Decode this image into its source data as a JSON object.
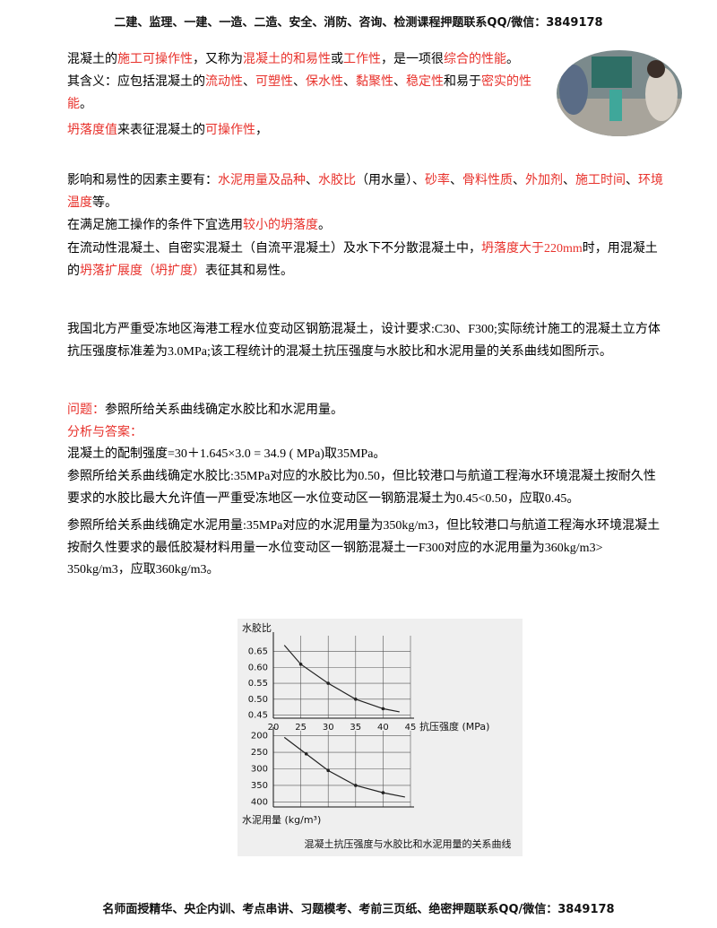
{
  "header": {
    "text": "二建、监理、一建、一造、二造、安全、消防、咨询、检测课程押题联系QQ/微信：3849178"
  },
  "paragraphs": [
    {
      "segments": [
        {
          "text": "混凝土的",
          "color": "#000000"
        },
        {
          "text": "施工可操作性",
          "color": "#e8322c"
        },
        {
          "text": "，又称为",
          "color": "#000000"
        },
        {
          "text": "混凝土的和易性",
          "color": "#e8322c"
        },
        {
          "text": "或",
          "color": "#000000"
        },
        {
          "text": "工作性",
          "color": "#e8322c"
        },
        {
          "text": "，是一项很",
          "color": "#000000"
        },
        {
          "text": "综合的性能",
          "color": "#e8322c"
        },
        {
          "text": "。",
          "color": "#000000"
        }
      ]
    },
    {
      "segments": [
        {
          "text": "其含义：应包括混凝土的",
          "color": "#000000"
        },
        {
          "text": "流动性",
          "color": "#e8322c"
        },
        {
          "text": "、",
          "color": "#000000"
        },
        {
          "text": "可塑性",
          "color": "#e8322c"
        },
        {
          "text": "、",
          "color": "#000000"
        },
        {
          "text": "保水性",
          "color": "#e8322c"
        },
        {
          "text": "、",
          "color": "#000000"
        },
        {
          "text": "黏聚性",
          "color": "#e8322c"
        },
        {
          "text": "、",
          "color": "#000000"
        },
        {
          "text": "稳定性",
          "color": "#e8322c"
        },
        {
          "text": "和易于",
          "color": "#000000"
        },
        {
          "text": "密实的性能",
          "color": "#e8322c"
        },
        {
          "text": "。",
          "color": "#000000"
        }
      ]
    },
    {
      "segments": [
        {
          "text": "坍落度值",
          "color": "#e8322c"
        },
        {
          "text": "来表征混凝土的",
          "color": "#000000"
        },
        {
          "text": "可操作性",
          "color": "#e8322c"
        },
        {
          "text": "，",
          "color": "#000000"
        }
      ]
    },
    {
      "segments": [
        {
          "text": "影响和易性的因素主要有：",
          "color": "#000000"
        },
        {
          "text": "水泥用量及品种",
          "color": "#e8322c"
        },
        {
          "text": "、",
          "color": "#000000"
        },
        {
          "text": "水胶比",
          "color": "#e8322c"
        },
        {
          "text": "（用水量）、",
          "color": "#000000"
        },
        {
          "text": "砂率",
          "color": "#e8322c"
        },
        {
          "text": "、",
          "color": "#000000"
        },
        {
          "text": "骨料性质",
          "color": "#e8322c"
        },
        {
          "text": "、",
          "color": "#000000"
        },
        {
          "text": "外加剂",
          "color": "#e8322c"
        },
        {
          "text": "、",
          "color": "#000000"
        },
        {
          "text": "施工时间",
          "color": "#e8322c"
        },
        {
          "text": "、",
          "color": "#000000"
        },
        {
          "text": "环境温度",
          "color": "#e8322c"
        },
        {
          "text": "等。",
          "color": "#000000"
        }
      ]
    },
    {
      "segments": [
        {
          "text": "在满足施工操作的条件下宜选用",
          "color": "#000000"
        },
        {
          "text": "较小的坍落度",
          "color": "#e8322c"
        },
        {
          "text": "。",
          "color": "#000000"
        }
      ]
    },
    {
      "segments": [
        {
          "text": "在流动性混凝土、自密实混凝土（自流平混凝土）及水下不分散混凝土中，",
          "color": "#000000"
        },
        {
          "text": "坍落度大于220mm",
          "color": "#e8322c"
        },
        {
          "text": "时，用混凝土的",
          "color": "#000000"
        },
        {
          "text": "坍落扩展度（坍扩度）",
          "color": "#e8322c"
        },
        {
          "text": "表征其和易性。",
          "color": "#000000"
        }
      ]
    },
    {
      "segments": [
        {
          "text": "我国北方严重受冻地区海港工程水位变动区钢筋混凝土，设计要求:C30、F300;实际统计施工的混凝土立方体抗压强度标准差为3.0MPa;该工程统计的混凝土抗压强度与水胶比和水泥用量的关系曲线如图所示。",
          "color": "#000000"
        }
      ]
    },
    {
      "segments": [
        {
          "text": "问题：",
          "color": "#e8322c"
        },
        {
          "text": "参照所给关系曲线确定水胶比和水泥用量。",
          "color": "#000000"
        }
      ]
    },
    {
      "segments": [
        {
          "text": "分析与答案：",
          "color": "#e8322c"
        }
      ]
    },
    {
      "segments": [
        {
          "text": "混凝土的配制强度=30＋1.645×3.0 = 34.9 ( MPa)取35MPa。",
          "color": "#000000"
        }
      ]
    },
    {
      "segments": [
        {
          "text": "参照所给关系曲线确定水胶比:35MPa对应的水胶比为0.50，但比较港口与航道工程海水环境混凝土按耐久性要求的水胶比最大允许值一严重受冻地区一水位变动区一钢筋混凝土为0.45<0.50，应取0.45。",
          "color": "#000000"
        }
      ]
    },
    {
      "segments": [
        {
          "text": "参照所给关系曲线确定水泥用量:35MPa对应的水泥用量为350kg/m3，但比较港口与航道工程海水环境混凝土按耐久性要求的最低胶凝材料用量一水位变动区一钢筋混凝土一F300对应的水泥用量为360kg/m3> 350kg/m3，应取360kg/m3。",
          "color": "#000000"
        }
      ]
    }
  ],
  "figure": {
    "caption": "混凝土抗压强度与水胶比和水泥用量的关系曲线",
    "charts": [
      {
        "type": "line",
        "ylabel": "水胶比",
        "xlabel": "抗压强度 (MPa)",
        "color": "#222222",
        "grid": true,
        "x": [
          22,
          25,
          30,
          35,
          40,
          43
        ],
        "values": [
          0.67,
          0.61,
          0.55,
          0.5,
          0.47,
          0.46
        ],
        "xlim": [
          20,
          45
        ],
        "xticks": [
          20,
          25,
          30,
          35,
          40,
          45
        ],
        "ylim": [
          0.44,
          0.7
        ],
        "yticks": [
          0.65,
          {
            "value": 0.6,
            "label": "0.60"
          },
          0.55,
          {
            "value": 0.5,
            "label": "0.50"
          },
          0.45
        ]
      },
      {
        "type": "line",
        "ylabel": "水泥用量 (kg/m³)",
        "color": "#222222",
        "grid": true,
        "x": [
          22,
          26,
          30,
          35,
          40,
          44
        ],
        "values": [
          205,
          255,
          305,
          350,
          372,
          385
        ],
        "xlim": [
          20,
          45
        ],
        "ylim": [
          415,
          185
        ],
        "yticks": [
          200,
          250,
          300,
          350,
          400
        ]
      }
    ]
  },
  "footer": {
    "text": "名师面授精华、央企内训、考点串讲、习题模考、考前三页纸、绝密押题联系QQ/微信：3849178"
  }
}
